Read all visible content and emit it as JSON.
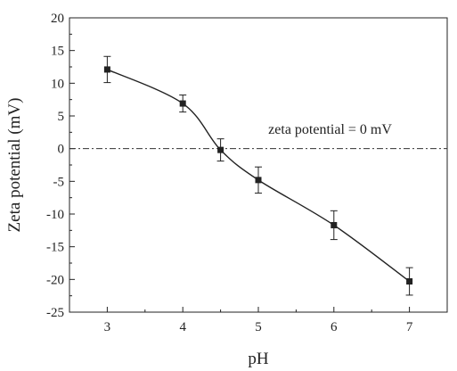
{
  "chart_data": {
    "type": "scatter",
    "xlabel": "pH",
    "ylabel": "Zeta potential (mV)",
    "xlim": [
      2.5,
      7.5
    ],
    "ylim": [
      -25,
      20
    ],
    "xticks": [
      3,
      4,
      5,
      6,
      7
    ],
    "yticks": [
      20,
      15,
      10,
      5,
      0,
      -5,
      -10,
      -15,
      -20,
      -25
    ],
    "grid": false,
    "series": [
      {
        "x": [
          3,
          4,
          4.5,
          5,
          6,
          7
        ],
        "y": [
          12.1,
          6.9,
          -0.2,
          -4.8,
          -11.7,
          -20.3
        ],
        "error": [
          2.0,
          1.3,
          1.7,
          2.0,
          2.2,
          2.1
        ],
        "marker": "square",
        "line": "smooth",
        "color": "#222222"
      }
    ],
    "reference_line": {
      "y": 0,
      "style": "dash-dot"
    },
    "annotations": [
      {
        "text": "zeta potential = 0 mV",
        "x": 5.95,
        "y": 2.3
      }
    ]
  }
}
